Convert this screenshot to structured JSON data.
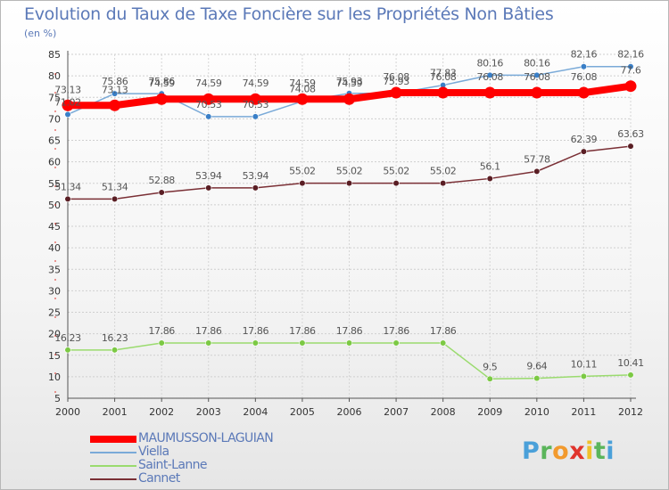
{
  "header": {
    "title": "Evolution du Taux de Taxe Foncière sur les Propriétés Non Bâties",
    "subtitle": "(en %)"
  },
  "logo": {
    "letters": [
      "P",
      "r",
      "o",
      "x",
      "i",
      "t",
      "i"
    ],
    "colors": [
      "#4aa0d9",
      "#5bb55b",
      "#f29a2e",
      "#e0342c",
      "#f0c02a",
      "#5bb55b",
      "#4aa0d9"
    ]
  },
  "chart_data": {
    "type": "line",
    "title": "Evolution du Taux de Taxe Foncière sur les Propriétés Non Bâties",
    "ylabel": "(en %)",
    "xlabel": "",
    "ylim": [
      5,
      85
    ],
    "yticks": [
      5,
      10,
      15,
      20,
      25,
      30,
      35,
      40,
      45,
      50,
      55,
      60,
      65,
      70,
      75,
      80,
      85
    ],
    "grid": true,
    "legend_position": "bottom-left",
    "categories": [
      "2000",
      "2001",
      "2002",
      "2003",
      "2004",
      "2005",
      "2006",
      "2007",
      "2008",
      "2009",
      "2010",
      "2011",
      "2012"
    ],
    "series": [
      {
        "name": "MAUMUSSON-LAGUIAN",
        "color": "#ff0000",
        "thick": true,
        "values": [
          73.13,
          73.13,
          74.59,
          74.59,
          74.59,
          74.59,
          74.59,
          76.08,
          76.08,
          76.08,
          76.08,
          76.08,
          77.6
        ],
        "labels": [
          "73.13",
          "73.13",
          "74.59",
          "74.59",
          "74.59",
          "74.59",
          "74.59",
          "76.08",
          "76.08",
          "76.08",
          "76.08",
          "76.08",
          "77.6"
        ]
      },
      {
        "name": "Viella",
        "color": "#7aaad8",
        "marker": "#3a7fc7",
        "thick": false,
        "values": [
          71.02,
          75.86,
          75.86,
          70.53,
          70.53,
          74.08,
          75.93,
          75.93,
          77.83,
          80.16,
          80.16,
          82.16,
          82.16
        ],
        "labels": [
          "71.02",
          "75.86",
          "75.86",
          "70.53",
          "70.53",
          "74.08",
          "75.93",
          "75.93",
          "77.83",
          "80.16",
          "80.16",
          "82.16",
          "82.16"
        ]
      },
      {
        "name": "Saint-Lanne",
        "color": "#9adb6e",
        "marker": "#7cc944",
        "thick": false,
        "values": [
          16.23,
          16.23,
          17.86,
          17.86,
          17.86,
          17.86,
          17.86,
          17.86,
          17.86,
          9.5,
          9.64,
          10.11,
          10.41
        ],
        "labels": [
          "16.23",
          "16.23",
          "17.86",
          "17.86",
          "17.86",
          "17.86",
          "17.86",
          "17.86",
          "17.86",
          "9.5",
          "9.64",
          "10.11",
          "10.41"
        ]
      },
      {
        "name": "Cannet",
        "color": "#7a2f35",
        "marker": "#5a1e24",
        "thick": false,
        "values": [
          51.34,
          51.34,
          52.88,
          53.94,
          53.94,
          55.02,
          55.02,
          55.02,
          55.02,
          56.1,
          57.78,
          62.39,
          63.63
        ],
        "labels": [
          "51.34",
          "51.34",
          "52.88",
          "53.94",
          "53.94",
          "55.02",
          "55.02",
          "55.02",
          "55.02",
          "56.1",
          "57.78",
          "62.39",
          "63.63"
        ]
      }
    ]
  }
}
